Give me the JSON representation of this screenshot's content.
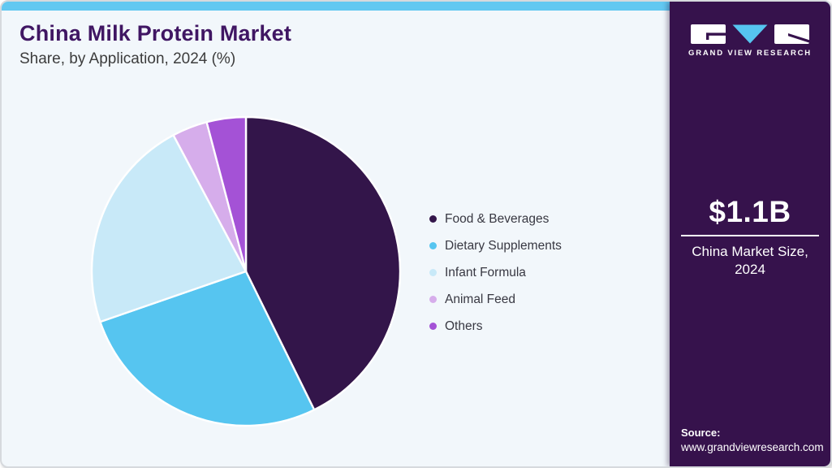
{
  "header": {
    "title": "China Milk Protein Market",
    "subtitle": "Share, by Application, 2024 (%)"
  },
  "brand": {
    "logo_text": "GRAND VIEW RESEARCH"
  },
  "sidebar": {
    "market_size_value": "$1.1B",
    "market_size_label": "China Market Size, 2024",
    "source_label": "Source:",
    "source_url": "www.grandviewresearch.com"
  },
  "theme": {
    "topbar_color": "#62C8F1",
    "card_background": "#F2F7FB",
    "sidebar_background": "#36124C",
    "title_color": "#401663",
    "logo_triangle_color": "#56C5F0"
  },
  "chart_data": {
    "type": "pie",
    "title": "China Milk Protein Market Share, by Application, 2024 (%)",
    "categories": [
      "Food & Beverages",
      "Dietary Supplements",
      "Infant Formula",
      "Animal Feed",
      "Others"
    ],
    "values": [
      42.7,
      27.0,
      22.5,
      3.7,
      4.1
    ],
    "unit": "%",
    "colors": [
      "#33154A",
      "#56C5F0",
      "#C8E9F8",
      "#D6ADEB",
      "#A452D6"
    ],
    "start_angle_deg": 0,
    "direction": "clockwise",
    "legend_position": "right",
    "slice_border_color": "#FFFFFF"
  }
}
